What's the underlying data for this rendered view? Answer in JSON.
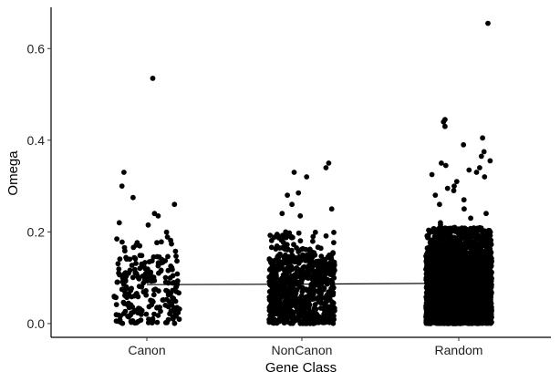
{
  "chart_data": {
    "type": "scatter",
    "subtype": "jitter",
    "title": "",
    "xlabel": "Gene Class",
    "ylabel": "Omega",
    "categories": [
      "Canon",
      "NonCanon",
      "Random"
    ],
    "ylim": [
      -0.03,
      0.69
    ],
    "yticks": [
      0.0,
      0.2,
      0.4,
      0.6
    ],
    "ytick_labels": [
      "0.0",
      "0.2",
      "0.4",
      "0.6"
    ],
    "grid": false,
    "legend": "none",
    "trend_line": {
      "categories": [
        "Canon",
        "NonCanon",
        "Random"
      ],
      "values": [
        0.085,
        0.086,
        0.088
      ]
    },
    "groups": [
      {
        "category": "Canon",
        "n_points": 230,
        "bulk_range": [
          0.0,
          0.2
        ],
        "outliers": [
          0.535,
          0.33,
          0.3,
          0.275,
          0.26,
          0.24,
          0.235,
          0.22,
          0.215
        ]
      },
      {
        "category": "NonCanon",
        "n_points": 800,
        "bulk_range": [
          0.0,
          0.2
        ],
        "outliers": [
          0.35,
          0.34,
          0.33,
          0.32,
          0.285,
          0.28,
          0.26,
          0.25,
          0.24,
          0.235
        ]
      },
      {
        "category": "Random",
        "n_points": 4000,
        "bulk_range": [
          0.0,
          0.21
        ],
        "outliers": [
          0.655,
          0.445,
          0.44,
          0.43,
          0.405,
          0.39,
          0.375,
          0.365,
          0.355,
          0.35,
          0.345,
          0.34,
          0.335,
          0.33,
          0.325,
          0.32,
          0.31,
          0.3,
          0.295,
          0.29,
          0.28,
          0.27,
          0.26,
          0.25,
          0.24,
          0.23,
          0.22,
          0.215
        ]
      }
    ],
    "point_color": "#000000"
  }
}
